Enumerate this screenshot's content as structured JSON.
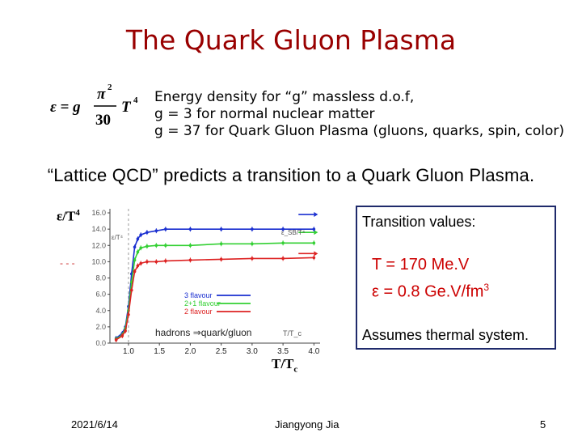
{
  "slide": {
    "title": "The Quark Gluon Plasma",
    "formula": {
      "lhs": "ε = g",
      "numerator": "π",
      "numerator_exp": "2",
      "denominator": "30",
      "variable": "T",
      "variable_exp": "4"
    },
    "description": [
      "Energy density for “g” massless d.o.f,",
      "g = 3 for normal nuclear matter",
      "g = 37 for Quark Gluon Plasma (gluons, quarks, spin, color)"
    ],
    "lattice_statement": "“Lattice QCD” predicts a transition to a Quark Gluon Plasma.",
    "axis_label_y_main": "ε/T",
    "axis_label_y_exp": "4",
    "axis_label_x_main": "T/T",
    "axis_label_x_sub": "c",
    "side_mark": "- - -",
    "transition_box": {
      "heading": "Transition values:",
      "temperature": "T = 170 Me.V",
      "energy_prefix": "ε  =  0.8 Ge.V/fm",
      "energy_exp": "3",
      "assumption": "Assumes thermal system."
    },
    "footer": {
      "date": "2021/6/14",
      "author": "Jiangyong Jia",
      "page": "5"
    }
  },
  "chart_data": {
    "type": "line",
    "inner_labels": {
      "y_title": "ε/T⁴",
      "sb_label": "ε_SB/T⁴",
      "x_title": "T/T_c",
      "annotation": "hadrons ⇒quark/gluon"
    },
    "y_ticks": [
      "0.0",
      "2.0",
      "4.0",
      "6.0",
      "8.0",
      "10.0",
      "12.0",
      "14.0",
      "16.0"
    ],
    "x_ticks": [
      "1.0",
      "1.5",
      "2.0",
      "2.5",
      "3.0",
      "3.5",
      "4.0"
    ],
    "xlim": [
      0.7,
      4.1
    ],
    "ylim": [
      0,
      16.5
    ],
    "grid": false,
    "legend_position": "bottom-center",
    "colors": {
      "3 flavour": "#1a2fd0",
      "2+1 flavour": "#33d033",
      "2 flavour": "#dd2222"
    },
    "series": [
      {
        "name": "3 flavour",
        "x": [
          0.8,
          0.9,
          0.95,
          1.0,
          1.05,
          1.1,
          1.15,
          1.2,
          1.3,
          1.45,
          1.6,
          2.0,
          2.5,
          3.0,
          3.5,
          4.0
        ],
        "y": [
          0.6,
          1.2,
          2.0,
          4.5,
          8.5,
          11.8,
          12.8,
          13.3,
          13.6,
          13.8,
          14.0,
          14.0,
          14.0,
          14.0,
          14.0,
          14.0
        ],
        "sb_limit": 15.8
      },
      {
        "name": "2+1 flavour",
        "x": [
          0.8,
          0.9,
          0.95,
          1.0,
          1.05,
          1.1,
          1.15,
          1.2,
          1.3,
          1.45,
          1.6,
          2.0,
          2.5,
          3.0,
          3.5,
          4.0
        ],
        "y": [
          0.5,
          1.0,
          1.8,
          4.0,
          7.5,
          10.2,
          11.2,
          11.7,
          11.9,
          12.0,
          12.0,
          12.0,
          12.2,
          12.2,
          12.3,
          12.3
        ],
        "sb_limit": 13.6
      },
      {
        "name": "2 flavour",
        "x": [
          0.8,
          0.9,
          0.95,
          1.0,
          1.05,
          1.1,
          1.15,
          1.2,
          1.3,
          1.45,
          1.6,
          2.0,
          2.5,
          3.0,
          3.5,
          4.0
        ],
        "y": [
          0.4,
          0.9,
          1.5,
          3.5,
          6.5,
          8.8,
          9.5,
          9.8,
          10.0,
          10.0,
          10.1,
          10.2,
          10.3,
          10.4,
          10.4,
          10.5
        ],
        "sb_limit": 11.0
      }
    ]
  }
}
